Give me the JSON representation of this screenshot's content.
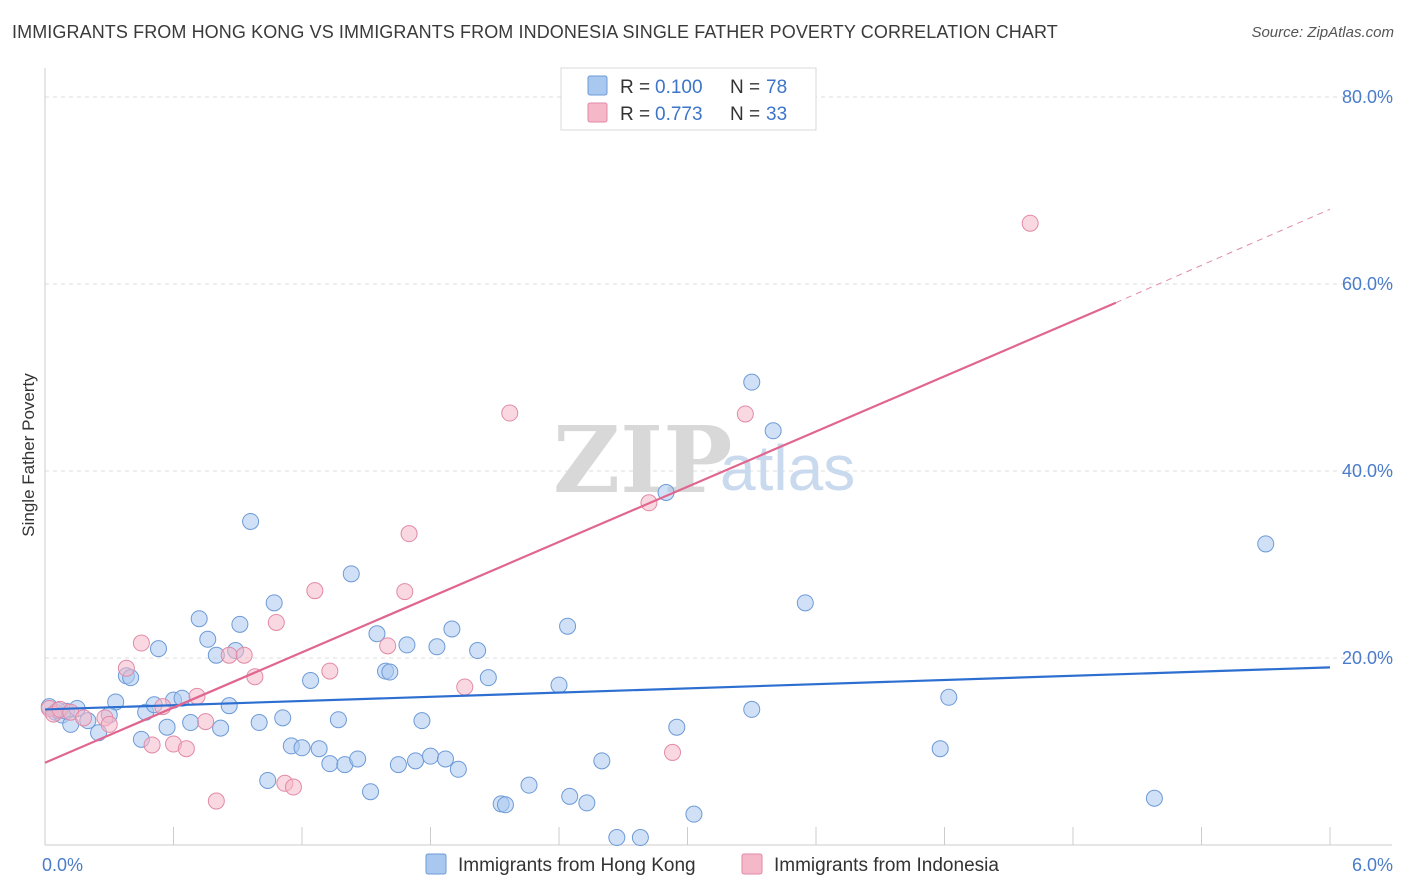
{
  "title": "IMMIGRANTS FROM HONG KONG VS IMMIGRANTS FROM INDONESIA SINGLE FATHER POVERTY CORRELATION CHART",
  "source": "Source: ZipAtlas.com",
  "watermark": {
    "zip": "ZIP",
    "atlas": "atlas"
  },
  "legend": {
    "rows": [
      {
        "r_label": "R =",
        "r_value": "0.100",
        "n_label": "N =",
        "n_value": "78",
        "color": "#a9c8f0"
      },
      {
        "r_label": "R =",
        "r_value": "0.773",
        "n_label": "N =",
        "n_value": "33",
        "color": "#f5b8c9"
      }
    ]
  },
  "bottom_legend": [
    {
      "label": "Immigrants from Hong Kong",
      "color": "#a9c8f0"
    },
    {
      "label": "Immigrants from Indonesia",
      "color": "#f5b8c9"
    }
  ],
  "colors": {
    "blue_fill": "#a9c8f0",
    "blue_stroke": "#6d9ad6",
    "blue_line": "#2d6fd0",
    "pink_fill": "#f5b8c9",
    "pink_stroke": "#e28aa6",
    "pink_line": "#e0668f",
    "tick_text": "#4a7cc9",
    "grid": "#dddddd"
  },
  "chart_data": {
    "type": "scatter",
    "ylabel": "Single Father Poverty",
    "xlim": [
      0,
      6
    ],
    "ylim": [
      0,
      80
    ],
    "x_tick_labels": [
      {
        "value": 0,
        "label": "0.0%"
      },
      {
        "value": 6,
        "label": "6.0%"
      }
    ],
    "y_tick_labels": [
      {
        "value": 20,
        "label": "20.0%"
      },
      {
        "value": 40,
        "label": "40.0%"
      },
      {
        "value": 60,
        "label": "60.0%"
      },
      {
        "value": 80,
        "label": "80.0%"
      }
    ],
    "series": [
      {
        "name": "Immigrants from Hong Kong",
        "r": 0.1,
        "n": 78,
        "trend": {
          "x0": 0,
          "y0": 14.5,
          "x1": 6,
          "y1": 19.0
        },
        "points": [
          [
            0.02,
            14.8
          ],
          [
            0.05,
            14.2
          ],
          [
            0.08,
            13.9
          ],
          [
            0.1,
            14.3
          ],
          [
            0.12,
            12.9
          ],
          [
            0.15,
            14.6
          ],
          [
            0.2,
            13.3
          ],
          [
            0.25,
            12.0
          ],
          [
            0.33,
            15.3
          ],
          [
            0.38,
            18.1
          ],
          [
            0.4,
            17.9
          ],
          [
            0.45,
            11.3
          ],
          [
            0.47,
            14.2
          ],
          [
            0.51,
            15.0
          ],
          [
            0.53,
            21.0
          ],
          [
            0.57,
            12.6
          ],
          [
            0.6,
            15.5
          ],
          [
            0.64,
            15.7
          ],
          [
            0.68,
            13.1
          ],
          [
            0.72,
            24.2
          ],
          [
            0.76,
            22.0
          ],
          [
            0.8,
            20.3
          ],
          [
            0.82,
            12.5
          ],
          [
            0.86,
            14.9
          ],
          [
            0.89,
            20.8
          ],
          [
            0.91,
            23.6
          ],
          [
            0.96,
            34.6
          ],
          [
            1.0,
            13.1
          ],
          [
            1.04,
            6.9
          ],
          [
            1.07,
            25.9
          ],
          [
            1.11,
            13.6
          ],
          [
            1.15,
            10.6
          ],
          [
            1.2,
            10.4
          ],
          [
            1.24,
            17.6
          ],
          [
            1.28,
            10.3
          ],
          [
            1.33,
            8.7
          ],
          [
            1.37,
            13.4
          ],
          [
            1.4,
            8.6
          ],
          [
            1.43,
            29.0
          ],
          [
            1.46,
            9.2
          ],
          [
            1.52,
            5.7
          ],
          [
            1.55,
            22.6
          ],
          [
            1.59,
            18.6
          ],
          [
            1.61,
            18.5
          ],
          [
            1.65,
            8.6
          ],
          [
            1.69,
            21.4
          ],
          [
            1.73,
            9.0
          ],
          [
            1.76,
            13.3
          ],
          [
            1.8,
            9.5
          ],
          [
            1.83,
            21.2
          ],
          [
            1.87,
            9.2
          ],
          [
            1.9,
            23.1
          ],
          [
            1.93,
            8.1
          ],
          [
            2.02,
            20.8
          ],
          [
            2.07,
            17.9
          ],
          [
            2.13,
            4.4
          ],
          [
            2.15,
            4.3
          ],
          [
            2.26,
            6.4
          ],
          [
            2.4,
            17.1
          ],
          [
            2.44,
            23.4
          ],
          [
            2.45,
            5.2
          ],
          [
            2.53,
            4.5
          ],
          [
            2.6,
            9.0
          ],
          [
            2.67,
            0.8
          ],
          [
            2.78,
            0.8
          ],
          [
            2.9,
            37.7
          ],
          [
            2.95,
            12.6
          ],
          [
            3.03,
            3.3
          ],
          [
            3.3,
            14.5
          ],
          [
            3.3,
            49.5
          ],
          [
            3.4,
            44.3
          ],
          [
            3.55,
            25.9
          ],
          [
            4.18,
            10.3
          ],
          [
            4.22,
            15.8
          ],
          [
            5.18,
            5.0
          ],
          [
            5.7,
            32.2
          ],
          [
            0.06,
            14.4
          ],
          [
            0.3,
            13.9
          ]
        ]
      },
      {
        "name": "Immigrants from Indonesia",
        "r": 0.773,
        "n": 33,
        "trend": {
          "x0": 0,
          "y0": 8.8,
          "x1": 5.0,
          "y1": 58.0
        },
        "trend_dashed": {
          "x0": 5.0,
          "y0": 58.0,
          "x1": 6.0,
          "y1": 68.0
        },
        "points": [
          [
            0.02,
            14.6
          ],
          [
            0.04,
            14.0
          ],
          [
            0.07,
            14.5
          ],
          [
            0.12,
            14.2
          ],
          [
            0.18,
            13.6
          ],
          [
            0.28,
            13.6
          ],
          [
            0.3,
            12.9
          ],
          [
            0.38,
            18.9
          ],
          [
            0.45,
            21.6
          ],
          [
            0.5,
            10.7
          ],
          [
            0.55,
            14.8
          ],
          [
            0.6,
            10.8
          ],
          [
            0.66,
            10.3
          ],
          [
            0.71,
            15.9
          ],
          [
            0.75,
            13.2
          ],
          [
            0.8,
            4.7
          ],
          [
            0.86,
            20.3
          ],
          [
            0.93,
            20.3
          ],
          [
            0.98,
            18.0
          ],
          [
            1.08,
            23.8
          ],
          [
            1.12,
            6.6
          ],
          [
            1.16,
            6.2
          ],
          [
            1.26,
            27.2
          ],
          [
            1.33,
            18.6
          ],
          [
            1.6,
            21.3
          ],
          [
            1.68,
            27.1
          ],
          [
            1.7,
            33.3
          ],
          [
            1.96,
            16.9
          ],
          [
            2.17,
            46.2
          ],
          [
            2.82,
            36.6
          ],
          [
            2.93,
            9.9
          ],
          [
            3.27,
            46.1
          ],
          [
            4.6,
            66.5
          ]
        ]
      }
    ]
  }
}
